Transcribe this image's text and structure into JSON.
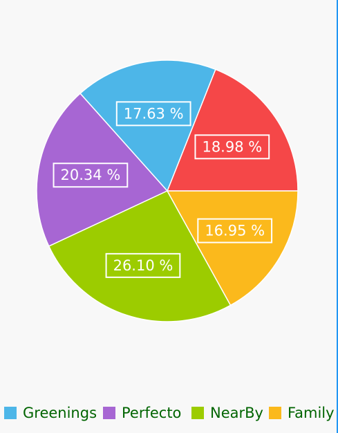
{
  "chart_data": {
    "type": "pie",
    "slices": [
      {
        "name": "",
        "value": 18.98,
        "label": "18.98 %",
        "color": "#f54748"
      },
      {
        "name": "Greenings",
        "value": 17.63,
        "label": "17.63 %",
        "color": "#4db6e8"
      },
      {
        "name": "Perfecto",
        "value": 20.34,
        "label": "20.34 %",
        "color": "#a766d3"
      },
      {
        "name": "NearBy",
        "value": 26.1,
        "label": "26.10 %",
        "color": "#9ccc00"
      },
      {
        "name": "Family",
        "value": 16.95,
        "label": "16.95 %",
        "color": "#fbb91c"
      }
    ],
    "legend": {
      "placement": "bottom",
      "items": [
        {
          "label": "Greenings",
          "color": "#4db6e8"
        },
        {
          "label": "Perfecto",
          "color": "#a766d3"
        },
        {
          "label": "NearBy",
          "color": "#9ccc00"
        },
        {
          "label": "Family",
          "color": "#fbb91c"
        }
      ]
    }
  }
}
